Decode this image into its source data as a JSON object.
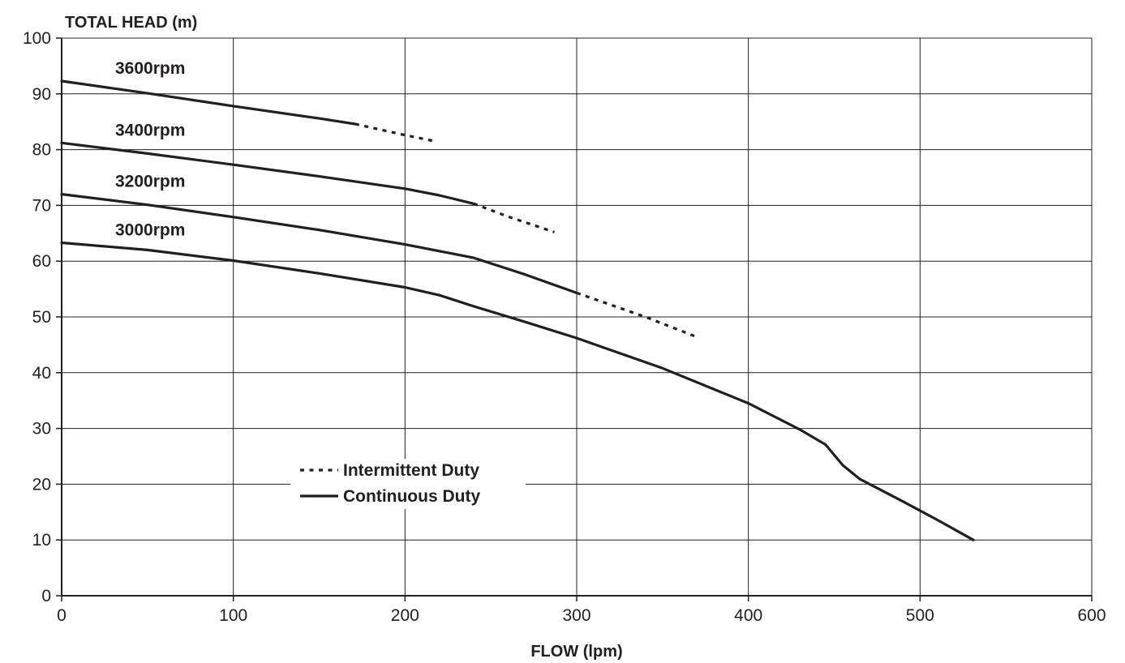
{
  "chart_data": {
    "type": "line",
    "title": "",
    "xlabel": "FLOW (lpm)",
    "ylabel": "TOTAL HEAD (m)",
    "xlim": [
      0,
      600
    ],
    "ylim": [
      0,
      100
    ],
    "xticks": [
      0,
      100,
      200,
      300,
      400,
      500,
      600
    ],
    "yticks": [
      0,
      10,
      20,
      30,
      40,
      50,
      60,
      70,
      80,
      90,
      100
    ],
    "grid": true,
    "legend": {
      "placement": "lower-left",
      "entries": [
        {
          "label": "Intermittent Duty",
          "style": "dotted"
        },
        {
          "label": "Continuous Duty",
          "style": "solid"
        }
      ]
    },
    "line_color": "#231f20",
    "series": [
      {
        "name": "3600rpm",
        "continuous": [
          [
            0,
            92.3
          ],
          [
            50,
            90.1
          ],
          [
            100,
            87.8
          ],
          [
            150,
            85.6
          ],
          [
            171,
            84.6
          ]
        ],
        "intermittent": [
          [
            171,
            84.6
          ],
          [
            200,
            82.6
          ],
          [
            216,
            81.6
          ]
        ]
      },
      {
        "name": "3400rpm",
        "continuous": [
          [
            0,
            81.2
          ],
          [
            50,
            79.3
          ],
          [
            100,
            77.3
          ],
          [
            150,
            75.2
          ],
          [
            200,
            73.0
          ],
          [
            220,
            71.8
          ],
          [
            240,
            70.3
          ]
        ],
        "intermittent": [
          [
            240,
            70.3
          ],
          [
            260,
            68.0
          ],
          [
            287,
            65.2
          ]
        ]
      },
      {
        "name": "3200rpm",
        "continuous": [
          [
            0,
            72.0
          ],
          [
            50,
            70.1
          ],
          [
            100,
            67.9
          ],
          [
            150,
            65.6
          ],
          [
            200,
            63.0
          ],
          [
            240,
            60.6
          ],
          [
            270,
            57.6
          ],
          [
            300,
            54.3
          ]
        ],
        "intermittent": [
          [
            300,
            54.3
          ],
          [
            340,
            50.0
          ],
          [
            370,
            46.4
          ]
        ]
      },
      {
        "name": "3000rpm",
        "continuous": [
          [
            0,
            63.3
          ],
          [
            50,
            62.0
          ],
          [
            100,
            60.1
          ],
          [
            150,
            57.8
          ],
          [
            200,
            55.3
          ],
          [
            220,
            53.9
          ],
          [
            240,
            51.9
          ],
          [
            270,
            49.1
          ],
          [
            300,
            46.2
          ],
          [
            350,
            40.8
          ],
          [
            400,
            34.5
          ],
          [
            430,
            29.8
          ],
          [
            445,
            27.1
          ],
          [
            455,
            23.4
          ],
          [
            465,
            20.9
          ],
          [
            490,
            16.9
          ],
          [
            510,
            13.6
          ],
          [
            531,
            10.0
          ]
        ],
        "intermittent": []
      }
    ]
  }
}
